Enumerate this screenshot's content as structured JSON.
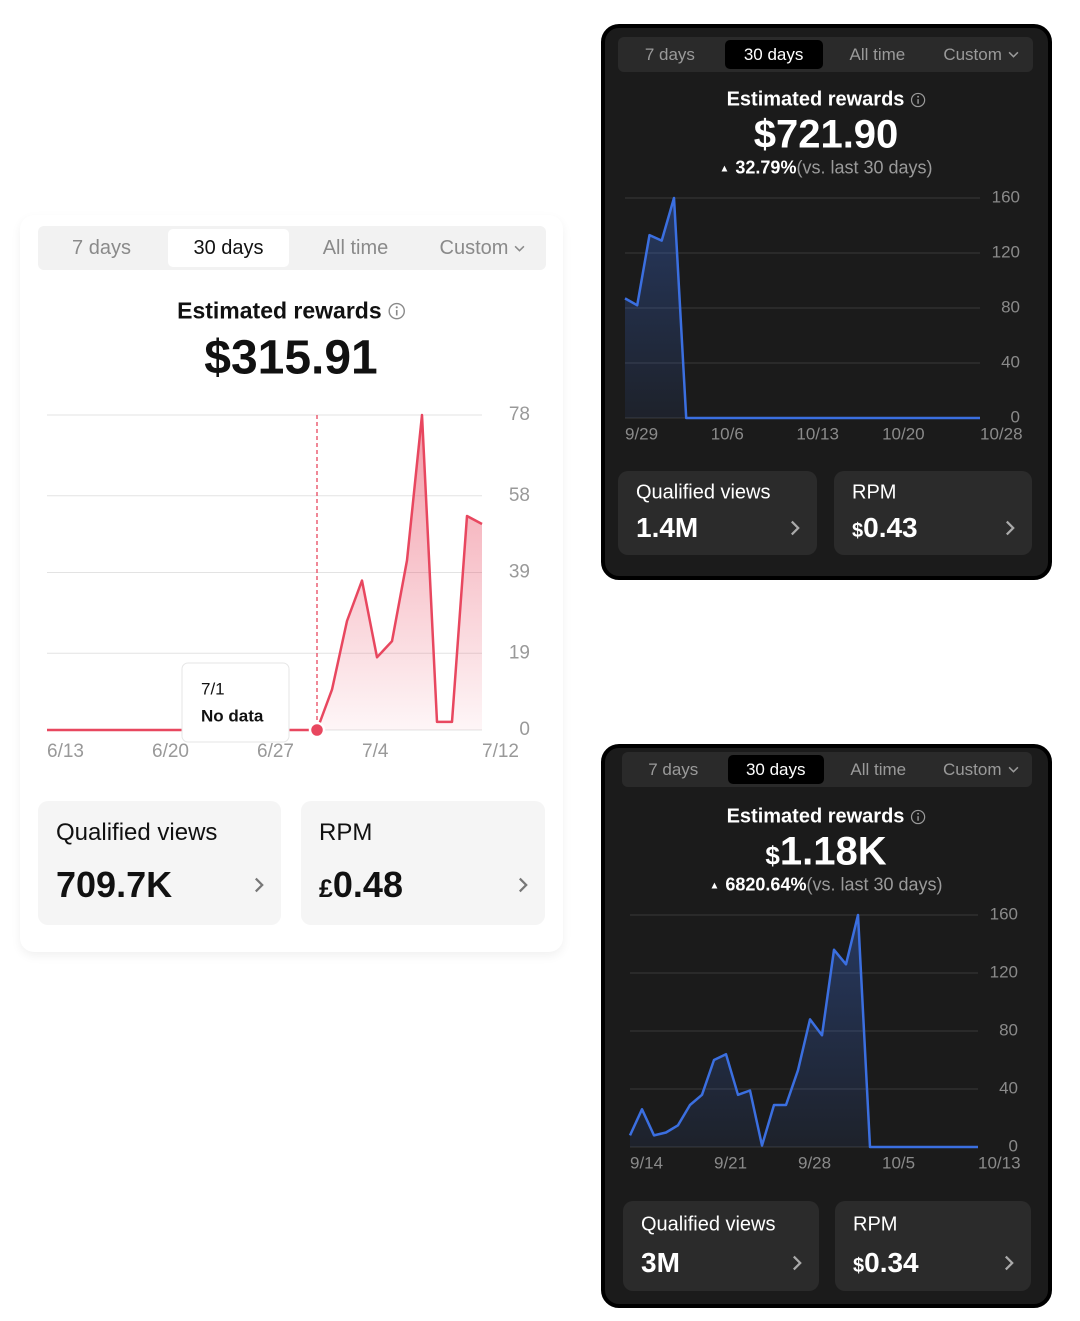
{
  "cards": [
    {
      "theme": "light",
      "tabs": [
        "7 days",
        "30 days",
        "All time",
        "Custom"
      ],
      "active_tab": 1,
      "title": "Estimated rewards",
      "amount": "$315.91",
      "chart_data": {
        "type": "area",
        "color": "#e8475f",
        "grid": true,
        "categories": [
          "6/13",
          null,
          null,
          null,
          null,
          null,
          null,
          "6/20",
          null,
          null,
          null,
          null,
          null,
          null,
          "6/27",
          null,
          null,
          null,
          null,
          null,
          null,
          "7/4",
          null,
          null,
          null,
          null,
          null,
          null,
          null,
          "7/12"
        ],
        "values": [
          0,
          0,
          0,
          0,
          0,
          0,
          0,
          0,
          0,
          0,
          0,
          0,
          0,
          0,
          0,
          0,
          0,
          0,
          0,
          10,
          27,
          37,
          18,
          22,
          42,
          78,
          2,
          2,
          53,
          51
        ],
        "ylim": [
          0,
          78
        ],
        "yticks": [
          0,
          19,
          39,
          58,
          78
        ],
        "tooltip": {
          "date": "7/1",
          "text": "No data"
        }
      },
      "metrics": [
        {
          "label": "Qualified views",
          "value": "709.7K"
        },
        {
          "label": "RPM",
          "currency": "£",
          "value": "0.48"
        }
      ]
    },
    {
      "theme": "dark",
      "tabs": [
        "7 days",
        "30 days",
        "All time",
        "Custom"
      ],
      "active_tab": 1,
      "title": "Estimated rewards",
      "amount": "$721.90",
      "change": "32.79%",
      "change_note": "(vs. last 30 days)",
      "chart_data": {
        "type": "area",
        "color": "#3b6fe0",
        "grid": true,
        "categories": [
          "9/29",
          null,
          null,
          null,
          null,
          null,
          null,
          "10/6",
          null,
          null,
          null,
          null,
          null,
          null,
          "10/13",
          null,
          null,
          null,
          null,
          null,
          null,
          "10/20",
          null,
          null,
          null,
          null,
          null,
          null,
          null,
          "10/28"
        ],
        "values": [
          87,
          82,
          133,
          129,
          160,
          0,
          0,
          0,
          0,
          0,
          0,
          0,
          0,
          0,
          0,
          0,
          0,
          0,
          0,
          0,
          0,
          0,
          0,
          0,
          0,
          0,
          0,
          0,
          0,
          0
        ],
        "ylim": [
          0,
          160
        ],
        "yticks": [
          0,
          40,
          80,
          120,
          160
        ]
      },
      "metrics": [
        {
          "label": "Qualified views",
          "value": "1.4M"
        },
        {
          "label": "RPM",
          "currency": "$",
          "value": "0.43"
        }
      ]
    },
    {
      "theme": "dark",
      "tabs": [
        "7 days",
        "30 days",
        "All time",
        "Custom"
      ],
      "active_tab": 1,
      "title": "Estimated rewards",
      "amount_currency": "$",
      "amount": "1.18K",
      "change": "6820.64%",
      "change_note": "(vs. last 30 days)",
      "chart_data": {
        "type": "area",
        "color": "#3b6fe0",
        "grid": true,
        "categories": [
          "9/14",
          null,
          null,
          null,
          null,
          null,
          null,
          "9/21",
          null,
          null,
          null,
          null,
          null,
          null,
          "9/28",
          null,
          null,
          null,
          null,
          null,
          null,
          "10/5",
          null,
          null,
          null,
          null,
          null,
          null,
          null,
          "10/13"
        ],
        "values": [
          8,
          26,
          8,
          10,
          15,
          29,
          36,
          60,
          64,
          36,
          39,
          1,
          29,
          29,
          53,
          88,
          77,
          136,
          126,
          160,
          0,
          0,
          0,
          0,
          0,
          0,
          0,
          0,
          0,
          0
        ],
        "ylim": [
          0,
          160
        ],
        "yticks": [
          0,
          40,
          80,
          120,
          160
        ]
      },
      "metrics": [
        {
          "label": "Qualified views",
          "value": "3M"
        },
        {
          "label": "RPM",
          "currency": "$",
          "value": "0.34"
        }
      ]
    }
  ]
}
